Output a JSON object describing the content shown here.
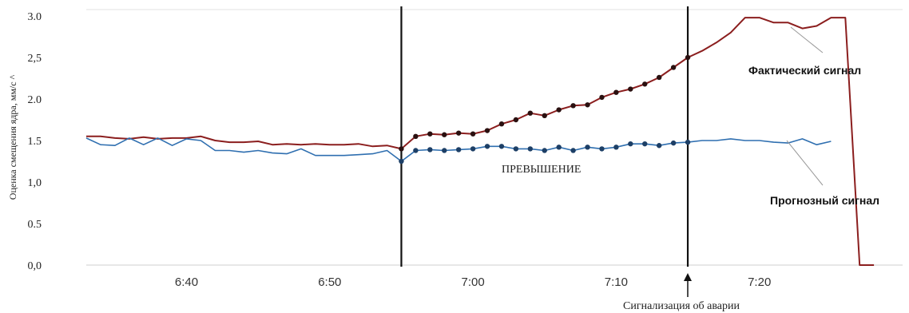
{
  "chart_data": {
    "type": "line",
    "ylabel": "Оценка смещения ядра, мм/с ^",
    "ylim": [
      0,
      3
    ],
    "xlim": [
      "6:33",
      "7:30"
    ],
    "y_ticks": [
      "0,0",
      "0.5",
      "1,0",
      "1.5",
      "2.0",
      "2,5",
      "3.0"
    ],
    "y_tick_values": [
      0,
      0.5,
      1,
      1.5,
      2,
      2.5,
      3
    ],
    "x_ticks": [
      "6:40",
      "6:50",
      "7:00",
      "7:10",
      "7:20"
    ],
    "x_tick_values": [
      "6:40",
      "6:50",
      "7:00",
      "7:10",
      "7:20"
    ],
    "markers": {
      "start": "6:55",
      "end": "7:15"
    },
    "series": [
      {
        "name": "Фактический сигнал",
        "color": "#8b1e1e",
        "x": [
          "6:33",
          "6:34",
          "6:35",
          "6:36",
          "6:37",
          "6:38",
          "6:39",
          "6:40",
          "6:41",
          "6:42",
          "6:43",
          "6:44",
          "6:45",
          "6:46",
          "6:47",
          "6:48",
          "6:49",
          "6:50",
          "6:51",
          "6:52",
          "6:53",
          "6:54",
          "6:55",
          "6:56",
          "6:57",
          "6:58",
          "6:59",
          "7:00",
          "7:01",
          "7:02",
          "7:03",
          "7:04",
          "7:05",
          "7:06",
          "7:07",
          "7:08",
          "7:09",
          "7:10",
          "7:11",
          "7:12",
          "7:13",
          "7:14",
          "7:15",
          "7:16",
          "7:17",
          "7:18",
          "7:19",
          "7:20",
          "7:21",
          "7:22",
          "7:23",
          "7:24",
          "7:25",
          "7:26",
          "7:27",
          "7:28"
        ],
        "values": [
          1.55,
          1.55,
          1.53,
          1.52,
          1.54,
          1.52,
          1.53,
          1.53,
          1.55,
          1.5,
          1.48,
          1.48,
          1.49,
          1.45,
          1.46,
          1.45,
          1.46,
          1.45,
          1.45,
          1.46,
          1.43,
          1.44,
          1.4,
          1.55,
          1.58,
          1.57,
          1.59,
          1.58,
          1.62,
          1.7,
          1.75,
          1.83,
          1.8,
          1.87,
          1.92,
          1.93,
          2.02,
          2.08,
          2.12,
          2.18,
          2.26,
          2.38,
          2.5,
          2.58,
          2.68,
          2.8,
          2.98,
          2.98,
          2.92,
          2.92,
          2.85,
          2.88,
          2.98,
          2.98,
          0,
          0
        ],
        "marked_range": [
          "6:55",
          "7:15"
        ]
      },
      {
        "name": "Прогнозный сигнал",
        "color": "#2f6fb0",
        "x": [
          "6:33",
          "6:34",
          "6:35",
          "6:36",
          "6:37",
          "6:38",
          "6:39",
          "6:40",
          "6:41",
          "6:42",
          "6:43",
          "6:44",
          "6:45",
          "6:46",
          "6:47",
          "6:48",
          "6:49",
          "6:50",
          "6:51",
          "6:52",
          "6:53",
          "6:54",
          "6:55",
          "6:56",
          "6:57",
          "6:58",
          "6:59",
          "7:00",
          "7:01",
          "7:02",
          "7:03",
          "7:04",
          "7:05",
          "7:06",
          "7:07",
          "7:08",
          "7:09",
          "7:10",
          "7:11",
          "7:12",
          "7:13",
          "7:14",
          "7:15",
          "7:16",
          "7:17",
          "7:18",
          "7:19",
          "7:20",
          "7:21",
          "7:22",
          "7:23",
          "7:24",
          "7:25"
        ],
        "values": [
          1.53,
          1.45,
          1.44,
          1.53,
          1.45,
          1.53,
          1.44,
          1.52,
          1.5,
          1.38,
          1.38,
          1.36,
          1.38,
          1.35,
          1.34,
          1.4,
          1.32,
          1.32,
          1.32,
          1.33,
          1.34,
          1.38,
          1.25,
          1.38,
          1.39,
          1.38,
          1.39,
          1.4,
          1.43,
          1.43,
          1.4,
          1.4,
          1.38,
          1.42,
          1.38,
          1.42,
          1.4,
          1.42,
          1.46,
          1.46,
          1.44,
          1.47,
          1.48,
          1.5,
          1.5,
          1.52,
          1.5,
          1.5,
          1.48,
          1.47,
          1.52,
          1.45,
          1.49
        ],
        "marked_range": [
          "6:55",
          "7:15"
        ]
      }
    ],
    "annotations": {
      "actual_label": "Фактический сигнал",
      "forecast_label": "Прогнозный сигнал",
      "exceed_label": "ПРЕВЫШЕНИЕ",
      "alarm_label": "Сигнализация об аварии"
    }
  }
}
